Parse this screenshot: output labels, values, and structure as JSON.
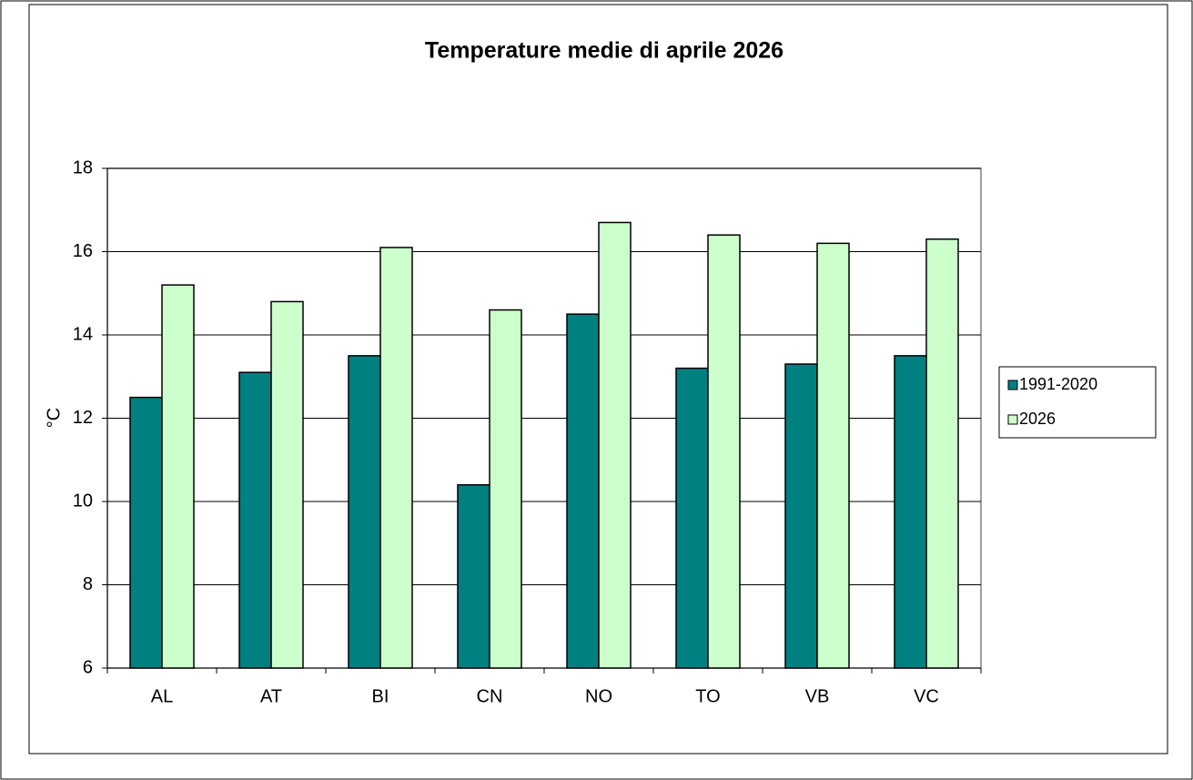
{
  "chart_data": {
    "type": "bar",
    "title": "Temperature medie di aprile 2026",
    "y_label": "°C",
    "categories": [
      "AL",
      "AT",
      "BI",
      "CN",
      "NO",
      "TO",
      "VB",
      "VC"
    ],
    "series": [
      {
        "name": "1991-2020",
        "color": "#008080",
        "values": [
          12.5,
          13.1,
          13.5,
          10.4,
          14.5,
          13.2,
          13.3,
          13.5
        ]
      },
      {
        "name": "2026",
        "color": "#ccffcc",
        "values": [
          15.2,
          14.8,
          16.1,
          14.6,
          16.7,
          16.4,
          16.2,
          16.3
        ]
      }
    ],
    "ylim": [
      6,
      18
    ],
    "yticks": [
      6,
      8,
      10,
      12,
      14,
      16,
      18
    ],
    "grid": true,
    "legend": "right"
  }
}
